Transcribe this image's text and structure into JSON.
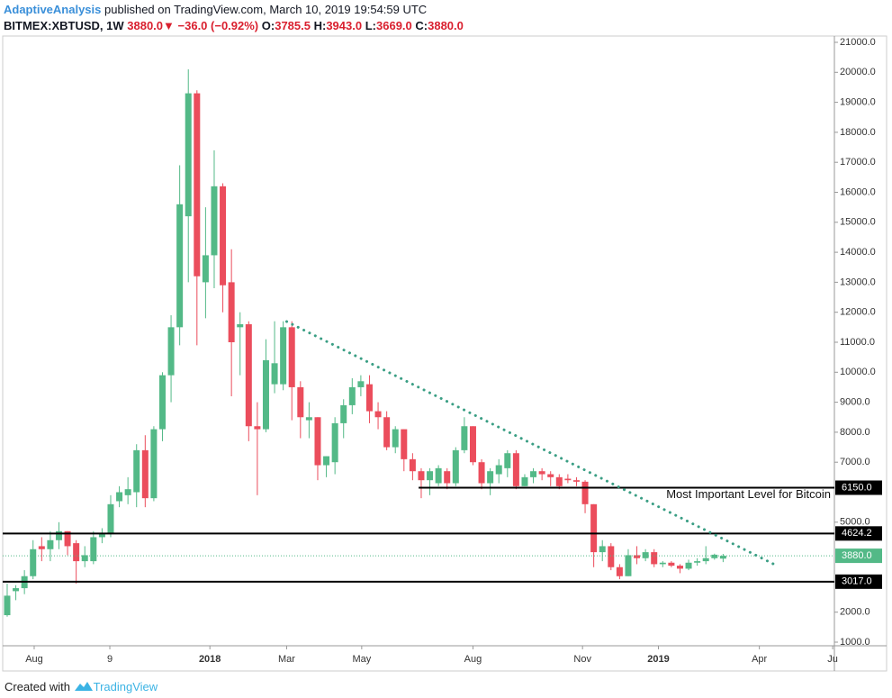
{
  "header": {
    "author": "AdaptiveAnalysis",
    "published": "published on TradingView.com, March 10, 2019 19:54:59 UTC",
    "symbol": "BITMEX:XBTUSD, 1W",
    "price": "3880.0",
    "change": "−36.0 (−0.92%)",
    "ohlc": [
      {
        "label": "O:",
        "value": "3785.5"
      },
      {
        "label": "H:",
        "value": "3943.0"
      },
      {
        "label": "L:",
        "value": "3669.0"
      },
      {
        "label": "C:",
        "value": "3880.0"
      }
    ]
  },
  "chart_data": {
    "type": "candlestick",
    "up_color": "#53b987",
    "down_color": "#eb4d5c",
    "open": [
      1900,
      2700,
      2800,
      3200,
      4200,
      4100,
      4400,
      4700,
      4300,
      3700,
      3700,
      4500,
      4600,
      5700,
      5900,
      6000,
      7400,
      5800,
      8100,
      9900,
      11500,
      15200,
      19300,
      13000,
      13900,
      16200,
      13000,
      11500,
      11600,
      8200,
      8100,
      9600,
      9600,
      11500,
      9500,
      8400,
      8500,
      6900,
      7000,
      8300,
      8900,
      9500,
      9600,
      8700,
      8500,
      7500,
      8100,
      7100,
      6700,
      6400,
      6300,
      6700,
      6300,
      7400,
      8200,
      7000,
      6300,
      6600,
      6800,
      7300,
      6200,
      6500,
      6700,
      6600,
      6500,
      6450,
      6400,
      6350,
      5600,
      4000,
      4200,
      3500,
      3200,
      3900,
      3800,
      4000,
      3600,
      3650,
      3550,
      3450,
      3650,
      3700,
      3800,
      3785
    ],
    "close": [
      2550,
      2800,
      3200,
      4100,
      4100,
      4400,
      4700,
      4200,
      3700,
      3900,
      4500,
      4600,
      5600,
      6000,
      6100,
      7400,
      5800,
      8100,
      9900,
      11500,
      15600,
      19300,
      13200,
      13900,
      16200,
      12900,
      11000,
      11600,
      8200,
      8100,
      10400,
      10300,
      11500,
      9500,
      8500,
      8500,
      6900,
      7200,
      8300,
      8900,
      9500,
      9700,
      8700,
      8500,
      7500,
      8100,
      7100,
      6700,
      6400,
      6700,
      6800,
      6300,
      7400,
      8200,
      7000,
      6300,
      6700,
      6900,
      7300,
      6200,
      6500,
      6700,
      6600,
      6500,
      6200,
      6400,
      6350,
      5600,
      4000,
      4200,
      3500,
      3200,
      3900,
      3800,
      4000,
      3600,
      3650,
      3550,
      3450,
      3650,
      3700,
      3800,
      3916,
      3880
    ],
    "high": [
      2950,
      2900,
      3400,
      4400,
      4500,
      4700,
      5000,
      4700,
      4400,
      4200,
      4700,
      4800,
      5900,
      6200,
      6500,
      7600,
      7900,
      8200,
      10000,
      11900,
      16900,
      20100,
      19400,
      15500,
      17400,
      16300,
      14100,
      12000,
      11700,
      9000,
      11100,
      11700,
      11700,
      11700,
      9700,
      9000,
      8500,
      7200,
      8500,
      9100,
      9800,
      9900,
      9900,
      9000,
      8700,
      8200,
      8100,
      7300,
      6800,
      6800,
      6900,
      6800,
      7500,
      8500,
      8200,
      7100,
      6800,
      7100,
      7400,
      7400,
      6600,
      6800,
      6800,
      6700,
      6600,
      6600,
      6500,
      6400,
      5600,
      4400,
      4300,
      3600,
      4100,
      4200,
      4100,
      4100,
      3700,
      3700,
      3600,
      3750,
      3800,
      4200,
      3950,
      3943
    ],
    "low": [
      1850,
      2400,
      2600,
      3100,
      3700,
      3700,
      4100,
      3900,
      2950,
      3500,
      3600,
      4300,
      4500,
      5500,
      5600,
      5500,
      5500,
      5700,
      7700,
      9000,
      10900,
      13000,
      10900,
      11800,
      12800,
      12000,
      9200,
      9900,
      7700,
      5900,
      8000,
      9300,
      9400,
      8400,
      7800,
      7800,
      6400,
      6500,
      6600,
      7800,
      8600,
      9200,
      8300,
      8100,
      7400,
      7300,
      6700,
      6400,
      5800,
      5900,
      6200,
      6100,
      6200,
      7300,
      6900,
      6100,
      5900,
      6300,
      6500,
      6100,
      6200,
      6300,
      6400,
      6200,
      6100,
      6300,
      6200,
      5300,
      3500,
      3700,
      3400,
      3100,
      3200,
      3600,
      3700,
      3500,
      3500,
      3500,
      3300,
      3400,
      3550,
      3600,
      3750,
      3669
    ],
    "xlim": [
      -0.52,
      95.9
    ],
    "xticks": [
      {
        "value": 3.13,
        "label": "Aug"
      },
      {
        "value": 11.9,
        "label": "9"
      },
      {
        "value": 23.5,
        "label": "2018"
      },
      {
        "value": 32.4,
        "label": "Mar"
      },
      {
        "value": 41.1,
        "label": "May"
      },
      {
        "value": 54,
        "label": "Aug"
      },
      {
        "value": 66.7,
        "label": "Nov"
      },
      {
        "value": 75.5,
        "label": "2019"
      },
      {
        "value": 87.2,
        "label": "Apr"
      },
      {
        "value": 95.7,
        "label": "Ju"
      }
    ],
    "ylim": [
      880,
      21210
    ],
    "yticks": [
      {
        "value": 1000,
        "label": "1000.0"
      },
      {
        "value": 2000,
        "label": "2000.0"
      },
      {
        "value": 5000,
        "label": "5000.0"
      },
      {
        "value": 7000,
        "label": "7000.0"
      },
      {
        "value": 8000,
        "label": "8000.0"
      },
      {
        "value": 9000,
        "label": "9000.0"
      },
      {
        "value": 10000,
        "label": "10000.0"
      },
      {
        "value": 11000,
        "label": "11000.0"
      },
      {
        "value": 12000,
        "label": "12000.0"
      },
      {
        "value": 13000,
        "label": "13000.0"
      },
      {
        "value": 14000,
        "label": "14000.0"
      },
      {
        "value": 15000,
        "label": "15000.0"
      },
      {
        "value": 16000,
        "label": "16000.0"
      },
      {
        "value": 17000,
        "label": "17000.0"
      },
      {
        "value": 18000,
        "label": "18000.0"
      },
      {
        "value": 19000,
        "label": "19000.0"
      },
      {
        "value": 20000,
        "label": "20000.0"
      },
      {
        "value": 21000,
        "label": "21000.0"
      }
    ],
    "levels": [
      {
        "value": 6150,
        "label": "6150.0",
        "from": 47.7
      },
      {
        "value": 4624.2,
        "label": "4624.2"
      },
      {
        "value": 3017,
        "label": "3017.0"
      }
    ],
    "current_price": {
      "value": 3880,
      "label": "3880.0"
    },
    "trendline": {
      "x": [
        32.4,
        89
      ],
      "values": [
        11690,
        3583
      ]
    },
    "annotation": "Most Important Level for Bitcoin"
  },
  "footer": {
    "created": "Created with",
    "brand": "TradingView"
  }
}
